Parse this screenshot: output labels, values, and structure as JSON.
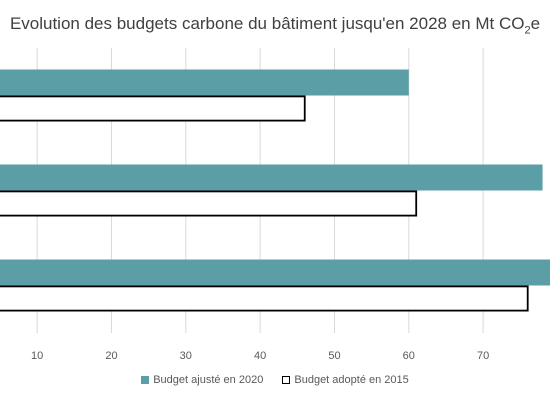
{
  "chart_data": {
    "type": "bar",
    "orientation": "horizontal",
    "title_main": "Evolution des budgets carbone du bâtiment jusqu'en 2028 en Mt CO",
    "title_sub": "2",
    "title_end": "e",
    "categories": [
      "",
      "",
      ""
    ],
    "series": [
      {
        "name": "Budget ajusté en 2020",
        "color": "#5b9ea6",
        "style": "filled",
        "values": [
          60,
          78,
          80
        ]
      },
      {
        "name": "Budget adopté en 2015",
        "color": "#000000",
        "style": "outline",
        "values": [
          46,
          61,
          76
        ]
      }
    ],
    "xticks": [
      10,
      20,
      30,
      40,
      50,
      60,
      70
    ],
    "xlim": [
      5,
      79
    ],
    "grid": true,
    "legend_position": "bottom"
  }
}
